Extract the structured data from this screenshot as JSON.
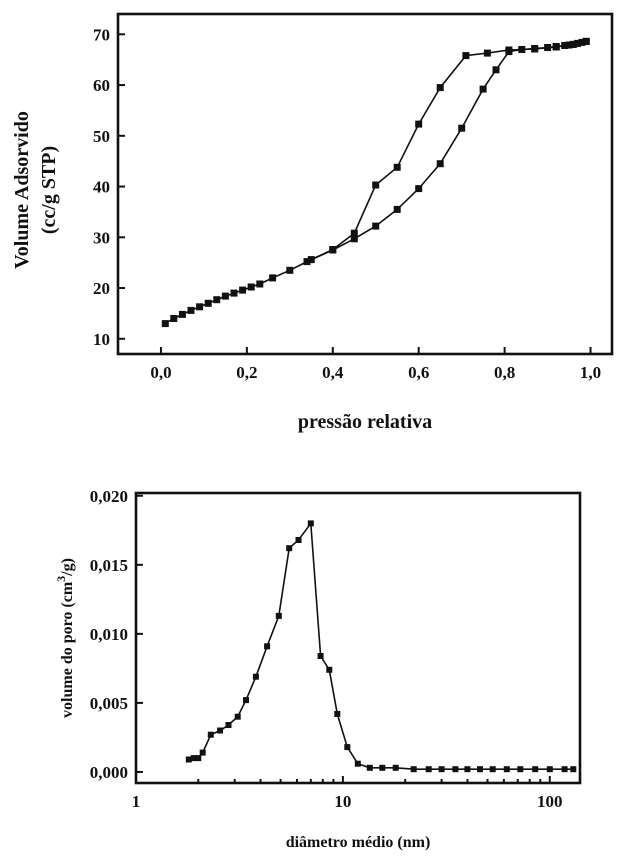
{
  "chart_data": [
    {
      "type": "line",
      "title": "",
      "xlabel": "pressão relativa",
      "ylabel_line1": "Volume Adsorvido",
      "ylabel_line2": "(cc/g STP)",
      "xlim": [
        -0.1,
        1.05
      ],
      "ylim": [
        7,
        74
      ],
      "grid": false,
      "legend": "none",
      "xticks": [
        {
          "value": 0.0,
          "label": "0,0"
        },
        {
          "value": 0.2,
          "label": "0,2"
        },
        {
          "value": 0.4,
          "label": "0,4"
        },
        {
          "value": 0.6,
          "label": "0,6"
        },
        {
          "value": 0.8,
          "label": "0,8"
        },
        {
          "value": 1.0,
          "label": "1,0"
        }
      ],
      "yticks": [
        {
          "value": 10,
          "label": "10"
        },
        {
          "value": 20,
          "label": "20"
        },
        {
          "value": 30,
          "label": "30"
        },
        {
          "value": 40,
          "label": "40"
        },
        {
          "value": 50,
          "label": "50"
        },
        {
          "value": 60,
          "label": "60"
        },
        {
          "value": 70,
          "label": "70"
        }
      ],
      "series": [
        {
          "x": [
            0.01,
            0.03,
            0.05,
            0.07,
            0.09,
            0.11,
            0.13,
            0.15,
            0.17,
            0.19,
            0.21,
            0.23,
            0.26,
            0.3,
            0.34,
            0.4,
            0.45,
            0.5,
            0.55,
            0.6,
            0.65,
            0.7,
            0.75,
            0.78,
            0.81,
            0.84,
            0.87,
            0.9,
            0.92,
            0.94,
            0.95,
            0.96,
            0.97,
            0.98,
            0.99
          ],
          "values": [
            13.0,
            14.0,
            14.8,
            15.6,
            16.3,
            17.0,
            17.7,
            18.4,
            19.0,
            19.6,
            20.2,
            20.8,
            22.0,
            23.5,
            25.2,
            27.5,
            29.7,
            32.2,
            35.5,
            39.6,
            44.5,
            51.5,
            59.2,
            63.0,
            66.6,
            67.0,
            67.2,
            67.4,
            67.6,
            67.8,
            67.9,
            68.0,
            68.2,
            68.4,
            68.6
          ]
        },
        {
          "x": [
            0.99,
            0.96,
            0.92,
            0.87,
            0.81,
            0.76,
            0.71,
            0.65,
            0.6,
            0.55,
            0.5,
            0.45,
            0.4,
            0.35
          ],
          "values": [
            68.6,
            68.0,
            67.5,
            67.1,
            66.9,
            66.3,
            65.8,
            59.5,
            52.3,
            43.8,
            40.3,
            30.8,
            27.6,
            25.6
          ]
        }
      ]
    },
    {
      "type": "line",
      "title": "",
      "xlabel": "diâmetro médio (nm)",
      "ylabel_pre": "volume do poro (cm",
      "ylabel_sup": "3",
      "ylabel_post": "/g)",
      "xscale": "log",
      "xlim": [
        1,
        140
      ],
      "ylim": [
        -0.0008,
        0.0202
      ],
      "grid": false,
      "legend": "none",
      "xticks": [
        {
          "value": 1,
          "label": "1"
        },
        {
          "value": 10,
          "label": "10"
        },
        {
          "value": 100,
          "label": "100"
        }
      ],
      "yticks": [
        {
          "value": 0.0,
          "label": "0,000"
        },
        {
          "value": 0.005,
          "label": "0,005"
        },
        {
          "value": 0.01,
          "label": "0,010"
        },
        {
          "value": 0.015,
          "label": "0,015"
        },
        {
          "value": 0.02,
          "label": "0,020"
        }
      ],
      "series": [
        {
          "x": [
            1.8,
            1.9,
            2.0,
            2.1,
            2.3,
            2.55,
            2.8,
            3.1,
            3.4,
            3.8,
            4.3,
            4.9,
            5.5,
            6.1,
            7.0,
            7.8,
            8.6,
            9.4,
            10.5,
            11.8,
            13.5,
            15.5,
            18.0,
            22,
            26,
            30,
            35,
            40,
            46,
            53,
            62,
            72,
            85,
            100,
            118,
            130
          ],
          "values": [
            0.0009,
            0.001,
            0.001,
            0.0014,
            0.0027,
            0.003,
            0.0034,
            0.004,
            0.0052,
            0.0069,
            0.0091,
            0.0113,
            0.0162,
            0.0168,
            0.018,
            0.0084,
            0.0074,
            0.0042,
            0.0018,
            0.0006,
            0.0003,
            0.0003,
            0.0003,
            0.0002,
            0.0002,
            0.0002,
            0.0002,
            0.0002,
            0.0002,
            0.0002,
            0.0002,
            0.0002,
            0.0002,
            0.0002,
            0.0002,
            0.0002
          ]
        }
      ]
    }
  ]
}
